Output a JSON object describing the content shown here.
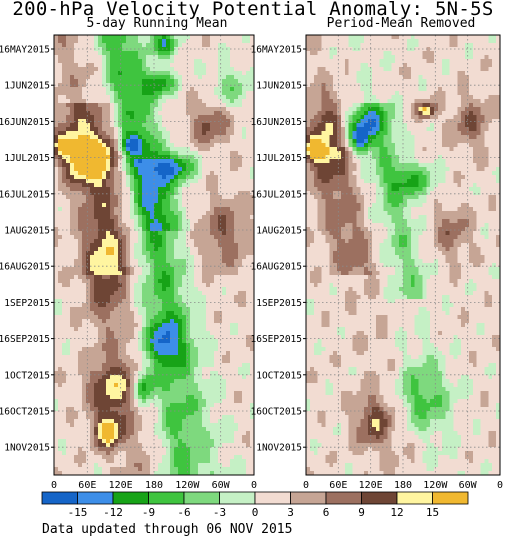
{
  "chart_data": [
    {
      "type": "heatmap",
      "title": "200-hPa Velocity Potential Anomaly: 5N-5S",
      "subtitle": "5-day Running Mean",
      "x_ticks": [
        "0",
        "60E",
        "120E",
        "180",
        "120W",
        "60W",
        "0"
      ],
      "y_ticks": [
        "16MAY2015",
        "1JUN2015",
        "16JUN2015",
        "1JUL2015",
        "16JUL2015",
        "1AUG2015",
        "16AUG2015",
        "1SEP2015",
        "16SEP2015",
        "1OCT2015",
        "16OCT2015",
        "1NOV2015"
      ],
      "grid": true
    },
    {
      "type": "heatmap",
      "subtitle": "Period-Mean Removed",
      "x_ticks": [
        "0",
        "60E",
        "120E",
        "180",
        "120W",
        "60W",
        "0"
      ],
      "y_ticks": [
        "16MAY2015",
        "1JUN2015",
        "16JUN2015",
        "1JUL2015",
        "16JUL2015",
        "1AUG2015",
        "16AUG2015",
        "1SEP2015",
        "16SEP2015",
        "1OCT2015",
        "16OCT2015",
        "1NOV2015"
      ],
      "grid": true
    }
  ],
  "colorbar": {
    "labels": [
      "-15",
      "-12",
      "-9",
      "-6",
      "-3",
      "0",
      "3",
      "6",
      "9",
      "12",
      "15"
    ],
    "colors": [
      "#1565c8",
      "#3d8ee8",
      "#17a317",
      "#3fc43f",
      "#7ed97e",
      "#c5f0c5",
      "#f2dcd2",
      "#c6a595",
      "#9c7060",
      "#6e4535",
      "#fff5a0",
      "#f0b830"
    ]
  },
  "footer": "Data updated through 06 NOV 2015"
}
